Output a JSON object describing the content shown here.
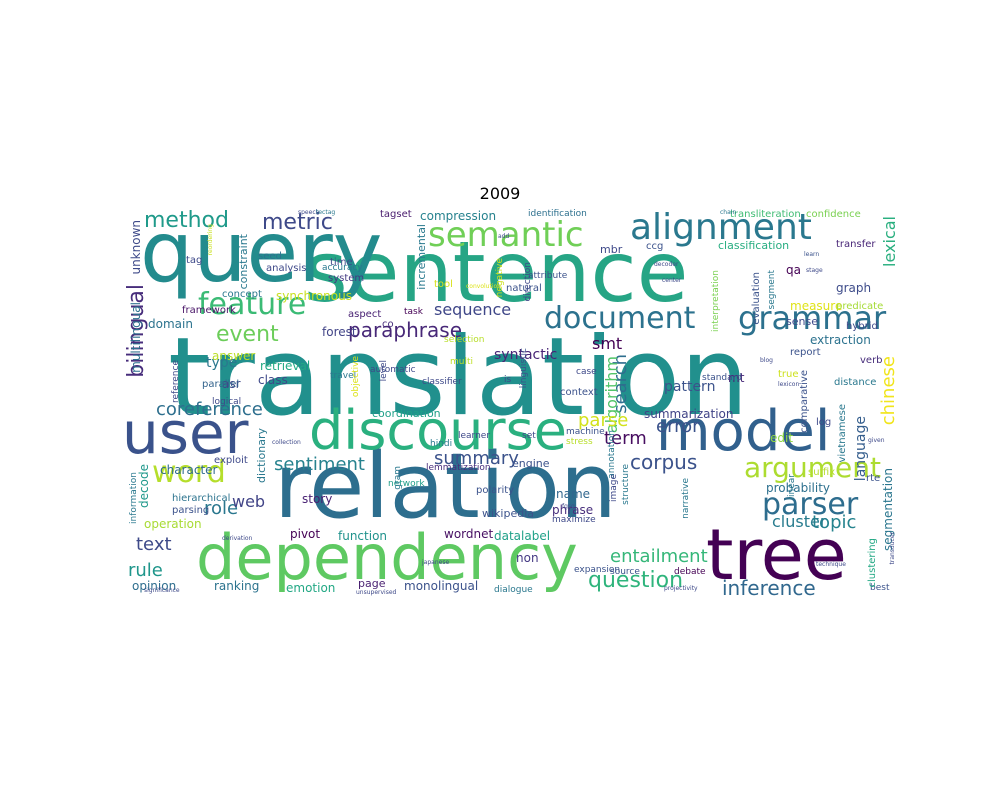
{
  "figure": {
    "title": "2009"
  },
  "words": [
    {
      "text": "translation",
      "color": "#21908d"
    },
    {
      "text": "sentence",
      "color": "#26a585"
    },
    {
      "text": "query",
      "color": "#238b8d"
    },
    {
      "text": "relation",
      "color": "#2d6e8e"
    },
    {
      "text": "dependency",
      "color": "#5ec962"
    },
    {
      "text": "discourse",
      "color": "#2ab07f"
    },
    {
      "text": "model",
      "color": "#31608d"
    },
    {
      "text": "user",
      "color": "#3a528b"
    },
    {
      "text": "tree",
      "color": "#440154"
    },
    {
      "text": "alignment",
      "color": "#2a788e"
    },
    {
      "text": "semantic",
      "color": "#70cf57"
    },
    {
      "text": "grammar",
      "color": "#2c718e"
    },
    {
      "text": "document",
      "color": "#2c728e"
    },
    {
      "text": "feature",
      "color": "#3bbb75"
    },
    {
      "text": "word",
      "color": "#b5de2b"
    },
    {
      "text": "argument",
      "color": "#addc30"
    },
    {
      "text": "parser",
      "color": "#2e6d8e"
    },
    {
      "text": "metric",
      "color": "#3e4989"
    },
    {
      "text": "method",
      "color": "#1f9a8a"
    },
    {
      "text": "paraphrase",
      "color": "#482878"
    },
    {
      "text": "event",
      "color": "#6ccd5a"
    },
    {
      "text": "question",
      "color": "#2fb47c"
    },
    {
      "text": "inference",
      "color": "#31688e"
    },
    {
      "text": "bilingual",
      "color": "#472d7b"
    },
    {
      "text": "coreference",
      "color": "#2e6f8e"
    },
    {
      "text": "sentiment",
      "color": "#26828e"
    },
    {
      "text": "summary",
      "color": "#3b528b"
    },
    {
      "text": "corpus",
      "color": "#3b528b"
    },
    {
      "text": "entailment",
      "color": "#35b779"
    },
    {
      "text": "role",
      "color": "#2a778e"
    },
    {
      "text": "text",
      "color": "#3e4a89"
    },
    {
      "text": "rule",
      "color": "#1f968b"
    },
    {
      "text": "error",
      "color": "#3b528b"
    },
    {
      "text": "term",
      "color": "#470d60"
    },
    {
      "text": "sequence",
      "color": "#3f4788"
    },
    {
      "text": "search",
      "color": "#2e6e8e"
    },
    {
      "text": "algorithm",
      "color": "#52c569"
    },
    {
      "text": "parse",
      "color": "#d2e21b"
    },
    {
      "text": "topic",
      "color": "#25838e"
    },
    {
      "text": "cluster",
      "color": "#287c8e"
    },
    {
      "text": "web",
      "color": "#414487"
    },
    {
      "text": "chinese",
      "color": "#f1e51d"
    },
    {
      "text": "lexical",
      "color": "#29af7f"
    },
    {
      "text": "language",
      "color": "#355e8d"
    },
    {
      "text": "syntactic",
      "color": "#482576"
    },
    {
      "text": "smt",
      "color": "#440154"
    },
    {
      "text": "pattern",
      "color": "#3b528b"
    },
    {
      "text": "summarization",
      "color": "#404387"
    },
    {
      "text": "compression",
      "color": "#26828e"
    },
    {
      "text": "synchronous",
      "color": "#c8e020"
    },
    {
      "text": "domain",
      "color": "#2c738e"
    },
    {
      "text": "answer",
      "color": "#bade28"
    },
    {
      "text": "forest",
      "color": "#414487"
    },
    {
      "text": "type",
      "color": "#2a788e"
    },
    {
      "text": "retrieval",
      "color": "#23a983"
    },
    {
      "text": "class",
      "color": "#3e4989"
    },
    {
      "text": "asr",
      "color": "#3f4889"
    },
    {
      "text": "character",
      "color": "#2f6b8e"
    },
    {
      "text": "decode",
      "color": "#1f988b"
    },
    {
      "text": "story",
      "color": "#482173"
    },
    {
      "text": "name",
      "color": "#31678e"
    },
    {
      "text": "phrase",
      "color": "#472e7c"
    },
    {
      "text": "engine",
      "color": "#3b528b"
    },
    {
      "text": "probability",
      "color": "#2d708e"
    },
    {
      "text": "operation",
      "color": "#a8db34"
    },
    {
      "text": "pivot",
      "color": "#440154"
    },
    {
      "text": "function",
      "color": "#20928c"
    },
    {
      "text": "wordnet",
      "color": "#471063"
    },
    {
      "text": "datalabel",
      "color": "#1fa188"
    },
    {
      "text": "non",
      "color": "#443983"
    },
    {
      "text": "ranking",
      "color": "#2c738e"
    },
    {
      "text": "emotion",
      "color": "#22a884"
    },
    {
      "text": "page",
      "color": "#481f70"
    },
    {
      "text": "monolingual",
      "color": "#3b528b"
    },
    {
      "text": "opinion",
      "color": "#2e6e8e"
    },
    {
      "text": "segmentation",
      "color": "#2a768e"
    },
    {
      "text": "unknown",
      "color": "#3e4a89"
    },
    {
      "text": "multilingual",
      "color": "#2d708e"
    },
    {
      "text": "edit",
      "color": "#8fd744"
    },
    {
      "text": "extraction",
      "color": "#2c728e"
    },
    {
      "text": "graph",
      "color": "#3e4c8a"
    },
    {
      "text": "measure",
      "color": "#dfe318"
    },
    {
      "text": "sense",
      "color": "#3e4989"
    },
    {
      "text": "mt",
      "color": "#482878"
    },
    {
      "text": "classification",
      "color": "#27ad81"
    },
    {
      "text": "mbr",
      "color": "#3e4989"
    },
    {
      "text": "identification",
      "color": "#2d708e"
    },
    {
      "text": "transliteration",
      "color": "#3fbc73"
    },
    {
      "text": "confidence",
      "color": "#7ad151"
    },
    {
      "text": "ccg",
      "color": "#3b528b"
    },
    {
      "text": "transfer",
      "color": "#482677"
    },
    {
      "text": "tool",
      "color": "#d8e219"
    },
    {
      "text": "natural",
      "color": "#3b528b"
    },
    {
      "text": "system",
      "color": "#443a83"
    },
    {
      "text": "time",
      "color": "#3e4989"
    },
    {
      "text": "accuracy",
      "color": "#29798e"
    },
    {
      "text": "analysis",
      "color": "#3e4989"
    },
    {
      "text": "seed",
      "color": "#2c728e"
    },
    {
      "text": "tagset",
      "color": "#481b6d"
    },
    {
      "text": "task",
      "color": "#440154"
    },
    {
      "text": "aspect",
      "color": "#482173"
    },
    {
      "text": "co",
      "color": "#472d7b"
    },
    {
      "text": "concept",
      "color": "#2a788e"
    },
    {
      "text": "framework",
      "color": "#481467"
    },
    {
      "text": "tag",
      "color": "#3e4989"
    },
    {
      "text": "constraint",
      "color": "#2a788e"
    },
    {
      "text": "incremental",
      "color": "#29798e"
    },
    {
      "text": "coordination",
      "color": "#1fa088"
    },
    {
      "text": "parallel",
      "color": "#33638d"
    },
    {
      "text": "logical",
      "color": "#3e4989"
    },
    {
      "text": "hierarchical",
      "color": "#2c738e"
    },
    {
      "text": "parsing",
      "color": "#3b528b"
    },
    {
      "text": "exploit",
      "color": "#3e4989"
    },
    {
      "text": "dictionary",
      "color": "#2a788e"
    },
    {
      "text": "network",
      "color": "#1f9e89"
    },
    {
      "text": "wikipedia",
      "color": "#3b528b"
    },
    {
      "text": "polarity",
      "color": "#3b528b"
    },
    {
      "text": "lemmatization",
      "color": "#472d7b"
    },
    {
      "text": "maximize",
      "color": "#3e4989"
    },
    {
      "text": "expansion",
      "color": "#3b528b"
    },
    {
      "text": "dialogue",
      "color": "#2a788e"
    },
    {
      "text": "debate",
      "color": "#440154"
    },
    {
      "text": "best",
      "color": "#3b528b"
    },
    {
      "text": "clustering",
      "color": "#22a884"
    },
    {
      "text": "automatic",
      "color": "#3e4989"
    },
    {
      "text": "travel",
      "color": "#2a788e"
    },
    {
      "text": "reference",
      "color": "#3e4989"
    },
    {
      "text": "information",
      "color": "#2a788e"
    },
    {
      "text": "true",
      "color": "#cde11d"
    },
    {
      "text": "report",
      "color": "#3b528b"
    },
    {
      "text": "hybrid",
      "color": "#3e4989"
    },
    {
      "text": "predicate",
      "color": "#a5db36"
    },
    {
      "text": "evaluation",
      "color": "#3b528b"
    },
    {
      "text": "verb",
      "color": "#472d7b"
    },
    {
      "text": "distance",
      "color": "#2a788e"
    },
    {
      "text": "comparative",
      "color": "#3b528b"
    },
    {
      "text": "vietnamese",
      "color": "#2a788e"
    },
    {
      "text": "log",
      "color": "#3e4989"
    },
    {
      "text": "rte",
      "color": "#3b528b"
    },
    {
      "text": "qa",
      "color": "#440154"
    },
    {
      "text": "machine",
      "color": "#3b528b"
    },
    {
      "text": "learner",
      "color": "#3e4989"
    },
    {
      "text": "set",
      "color": "#3e4989"
    },
    {
      "text": "context",
      "color": "#3b528b"
    },
    {
      "text": "annotation",
      "color": "#2a788e"
    },
    {
      "text": "stress",
      "color": "#b8de29"
    },
    {
      "text": "case",
      "color": "#3e4989"
    },
    {
      "text": "image",
      "color": "#3e4989"
    },
    {
      "text": "structure",
      "color": "#2a788e"
    },
    {
      "text": "source",
      "color": "#3b528b"
    },
    {
      "text": "suffix",
      "color": "#b5de2b"
    },
    {
      "text": "hindi",
      "color": "#2a788e"
    },
    {
      "text": "gram",
      "color": "#2a788e"
    },
    {
      "text": "is",
      "color": "#3e4989"
    },
    {
      "text": "multi",
      "color": "#bddf26"
    },
    {
      "text": "level",
      "color": "#3e4989"
    },
    {
      "text": "objective",
      "color": "#dde318"
    },
    {
      "text": "selection",
      "color": "#b8de29"
    },
    {
      "text": "classifier",
      "color": "#3e4989"
    },
    {
      "text": "linguistic",
      "color": "#3b528b"
    },
    {
      "text": "direction",
      "color": "#3e4989"
    },
    {
      "text": "attribute",
      "color": "#3b528b"
    },
    {
      "text": "negative",
      "color": "#cde11d"
    },
    {
      "text": "interpretation",
      "color": "#7ad151"
    },
    {
      "text": "narrative",
      "color": "#2a788e"
    },
    {
      "text": "standard",
      "color": "#3b528b"
    },
    {
      "text": "linear",
      "color": "#2a788e"
    },
    {
      "text": "speech",
      "color": "#3e4989"
    },
    {
      "text": "tectag",
      "color": "#2a788e"
    },
    {
      "text": "reordering",
      "color": "#c8e020"
    },
    {
      "text": "convolution",
      "color": "#dde318"
    },
    {
      "text": "add",
      "color": "#3e4989"
    },
    {
      "text": "chain",
      "color": "#2a788e"
    },
    {
      "text": "learn",
      "color": "#3b528b"
    },
    {
      "text": "stage",
      "color": "#3e4989"
    },
    {
      "text": "decoder",
      "color": "#3e4989"
    },
    {
      "text": "center",
      "color": "#3e4989"
    },
    {
      "text": "collection",
      "color": "#3e4989"
    },
    {
      "text": "japanese",
      "color": "#3e4989"
    },
    {
      "text": "significance",
      "color": "#3e4989"
    },
    {
      "text": "derivation",
      "color": "#3e4989"
    },
    {
      "text": "technique",
      "color": "#3e4989"
    },
    {
      "text": "projectivity",
      "color": "#3e4989"
    },
    {
      "text": "unsupervised",
      "color": "#3e4989"
    },
    {
      "text": "lexicon",
      "color": "#3e4989"
    },
    {
      "text": "given",
      "color": "#3e4989"
    },
    {
      "text": "blog",
      "color": "#3e4989"
    },
    {
      "text": "transducer",
      "color": "#3e4989"
    },
    {
      "text": "fgsg",
      "color": "#3e4989"
    },
    {
      "text": "segment",
      "color": "#2a788e"
    }
  ]
}
